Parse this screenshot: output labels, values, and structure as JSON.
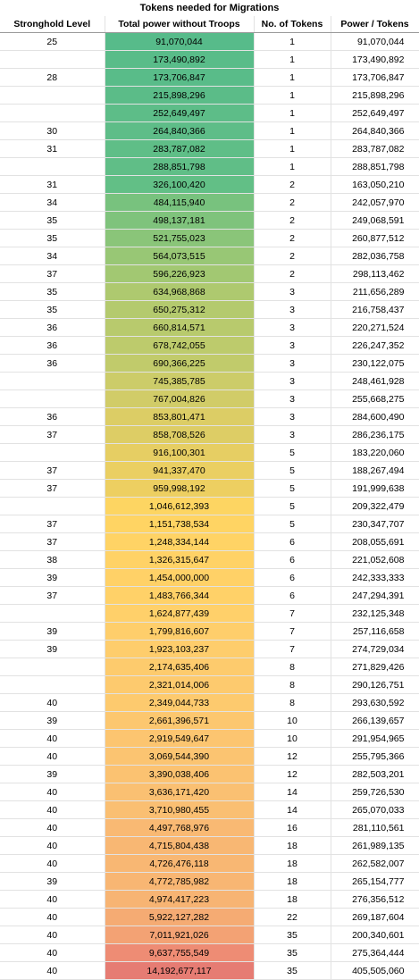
{
  "title": "Tokens needed for Migrations",
  "headers": {
    "level": "Stronghold Level",
    "power": "Total power without Troops",
    "tokens": "No. of Tokens",
    "ratio": "Power / Tokens"
  },
  "rows": [
    {
      "level": "25",
      "power": "91,070,044",
      "tokens": "1",
      "ratio": "91,070,044",
      "color": "#57bb8a"
    },
    {
      "level": "",
      "power": "173,490,892",
      "tokens": "1",
      "ratio": "173,490,892",
      "color": "#59bc89"
    },
    {
      "level": "28",
      "power": "173,706,847",
      "tokens": "1",
      "ratio": "173,706,847",
      "color": "#59bc89"
    },
    {
      "level": "",
      "power": "215,898,296",
      "tokens": "1",
      "ratio": "215,898,296",
      "color": "#5bbc88"
    },
    {
      "level": "",
      "power": "252,649,497",
      "tokens": "1",
      "ratio": "252,649,497",
      "color": "#5dbd88"
    },
    {
      "level": "30",
      "power": "264,840,366",
      "tokens": "1",
      "ratio": "264,840,366",
      "color": "#5ebd88"
    },
    {
      "level": "31",
      "power": "283,787,082",
      "tokens": "1",
      "ratio": "283,787,082",
      "color": "#5fbe87"
    },
    {
      "level": "",
      "power": "288,851,798",
      "tokens": "1",
      "ratio": "288,851,798",
      "color": "#60be87"
    },
    {
      "level": "31",
      "power": "326,100,420",
      "tokens": "2",
      "ratio": "163,050,210",
      "color": "#62bf86"
    },
    {
      "level": "34",
      "power": "484,115,940",
      "tokens": "2",
      "ratio": "242,057,970",
      "color": "#78c27e"
    },
    {
      "level": "35",
      "power": "498,137,181",
      "tokens": "2",
      "ratio": "249,068,591",
      "color": "#7fc37c"
    },
    {
      "level": "35",
      "power": "521,755,023",
      "tokens": "2",
      "ratio": "260,877,512",
      "color": "#8ac579"
    },
    {
      "level": "34",
      "power": "564,073,515",
      "tokens": "2",
      "ratio": "282,036,758",
      "color": "#98c775"
    },
    {
      "level": "37",
      "power": "596,226,923",
      "tokens": "2",
      "ratio": "298,113,462",
      "color": "#a2c872"
    },
    {
      "level": "35",
      "power": "634,968,868",
      "tokens": "3",
      "ratio": "211,656,289",
      "color": "#aec96f"
    },
    {
      "level": "35",
      "power": "650,275,312",
      "tokens": "3",
      "ratio": "216,758,437",
      "color": "#b4ca6e"
    },
    {
      "level": "36",
      "power": "660,814,571",
      "tokens": "3",
      "ratio": "220,271,524",
      "color": "#b8ca6d"
    },
    {
      "level": "36",
      "power": "678,742,055",
      "tokens": "3",
      "ratio": "226,247,352",
      "color": "#bdcb6c"
    },
    {
      "level": "36",
      "power": "690,366,225",
      "tokens": "3",
      "ratio": "230,122,075",
      "color": "#c1cb6b"
    },
    {
      "level": "",
      "power": "745,385,785",
      "tokens": "3",
      "ratio": "248,461,928",
      "color": "#cccc69"
    },
    {
      "level": "",
      "power": "767,004,826",
      "tokens": "3",
      "ratio": "255,668,275",
      "color": "#d1cc68"
    },
    {
      "level": "36",
      "power": "853,801,471",
      "tokens": "3",
      "ratio": "284,600,490",
      "color": "#dccd65"
    },
    {
      "level": "37",
      "power": "858,708,526",
      "tokens": "3",
      "ratio": "286,236,175",
      "color": "#ddcd65"
    },
    {
      "level": "",
      "power": "916,100,301",
      "tokens": "5",
      "ratio": "183,220,060",
      "color": "#e6ce63"
    },
    {
      "level": "37",
      "power": "941,337,470",
      "tokens": "5",
      "ratio": "188,267,494",
      "color": "#eacf62"
    },
    {
      "level": "37",
      "power": "959,998,192",
      "tokens": "5",
      "ratio": "191,999,638",
      "color": "#edcf61"
    },
    {
      "level": "",
      "power": "1,046,612,393",
      "tokens": "5",
      "ratio": "209,322,479",
      "color": "#fdd562"
    },
    {
      "level": "37",
      "power": "1,151,738,534",
      "tokens": "5",
      "ratio": "230,347,707",
      "color": "#ffd463"
    },
    {
      "level": "37",
      "power": "1,248,334,144",
      "tokens": "6",
      "ratio": "208,055,691",
      "color": "#ffd365"
    },
    {
      "level": "38",
      "power": "1,326,315,647",
      "tokens": "6",
      "ratio": "221,052,608",
      "color": "#ffd266"
    },
    {
      "level": "39",
      "power": "1,454,000,000",
      "tokens": "6",
      "ratio": "242,333,333",
      "color": "#ffd167"
    },
    {
      "level": "37",
      "power": "1,483,766,344",
      "tokens": "6",
      "ratio": "247,294,391",
      "color": "#ffd168"
    },
    {
      "level": "",
      "power": "1,624,877,439",
      "tokens": "7",
      "ratio": "232,125,348",
      "color": "#ffd06a"
    },
    {
      "level": "39",
      "power": "1,799,816,607",
      "tokens": "7",
      "ratio": "257,116,658",
      "color": "#fece6b"
    },
    {
      "level": "39",
      "power": "1,923,103,237",
      "tokens": "7",
      "ratio": "274,729,034",
      "color": "#fecd6c"
    },
    {
      "level": "",
      "power": "2,174,635,406",
      "tokens": "8",
      "ratio": "271,829,426",
      "color": "#fdcb6d"
    },
    {
      "level": "",
      "power": "2,321,014,006",
      "tokens": "8",
      "ratio": "290,126,751",
      "color": "#fdca6e"
    },
    {
      "level": "40",
      "power": "2,349,044,733",
      "tokens": "8",
      "ratio": "293,630,592",
      "color": "#fdca6e"
    },
    {
      "level": "39",
      "power": "2,661,396,571",
      "tokens": "10",
      "ratio": "266,139,657",
      "color": "#fcc76f"
    },
    {
      "level": "40",
      "power": "2,919,549,647",
      "tokens": "10",
      "ratio": "291,954,965",
      "color": "#fcc570"
    },
    {
      "level": "40",
      "power": "3,069,544,390",
      "tokens": "12",
      "ratio": "255,795,366",
      "color": "#fbc471"
    },
    {
      "level": "39",
      "power": "3,390,038,406",
      "tokens": "12",
      "ratio": "282,503,201",
      "color": "#fbc271"
    },
    {
      "level": "40",
      "power": "3,636,171,420",
      "tokens": "14",
      "ratio": "259,726,530",
      "color": "#fac072"
    },
    {
      "level": "40",
      "power": "3,710,980,455",
      "tokens": "14",
      "ratio": "265,070,033",
      "color": "#fabf72"
    },
    {
      "level": "40",
      "power": "4,497,768,976",
      "tokens": "16",
      "ratio": "281,110,561",
      "color": "#f9b973"
    },
    {
      "level": "40",
      "power": "4,715,804,438",
      "tokens": "18",
      "ratio": "261,989,135",
      "color": "#f8b773"
    },
    {
      "level": "40",
      "power": "4,726,476,118",
      "tokens": "18",
      "ratio": "262,582,007",
      "color": "#f8b773"
    },
    {
      "level": "39",
      "power": "4,772,785,982",
      "tokens": "18",
      "ratio": "265,154,777",
      "color": "#f8b673"
    },
    {
      "level": "40",
      "power": "4,974,417,223",
      "tokens": "18",
      "ratio": "276,356,512",
      "color": "#f7b473"
    },
    {
      "level": "40",
      "power": "5,922,127,282",
      "tokens": "22",
      "ratio": "269,187,604",
      "color": "#f5ab73"
    },
    {
      "level": "40",
      "power": "7,011,921,026",
      "tokens": "35",
      "ratio": "200,340,601",
      "color": "#f3a274"
    },
    {
      "level": "40",
      "power": "9,637,755,549",
      "tokens": "35",
      "ratio": "275,364,444",
      "color": "#ee8c74"
    },
    {
      "level": "40",
      "power": "14,192,677,117",
      "tokens": "35",
      "ratio": "405,505,060",
      "color": "#e67c73"
    }
  ]
}
